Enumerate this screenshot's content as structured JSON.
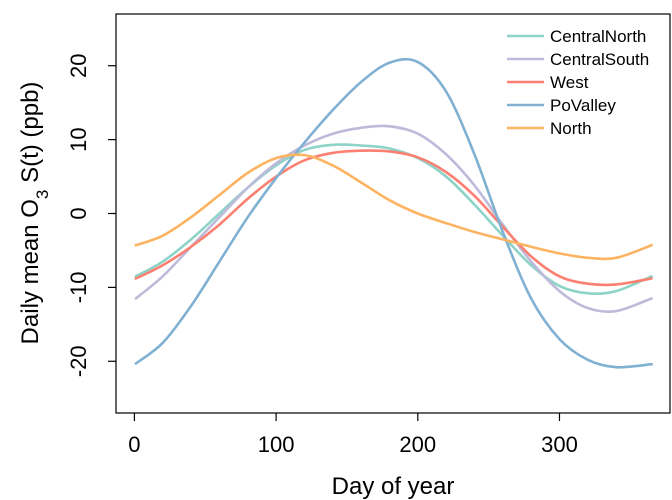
{
  "chart_data": {
    "type": "line",
    "title": "",
    "xlabel": "Day of year",
    "ylabel_main": "Daily mean O",
    "ylabel_sub": "3",
    "ylabel_tail": " S(t) (ppb)",
    "xlim": [
      -13,
      378
    ],
    "ylim": [
      -27,
      27
    ],
    "xticks": [
      0,
      100,
      200,
      300
    ],
    "xtick_labels": [
      "0",
      "100",
      "200",
      "300"
    ],
    "yticks": [
      -20,
      -10,
      0,
      10,
      20
    ],
    "ytick_labels": [
      "-20",
      "-10",
      "0",
      "10",
      "20"
    ],
    "legend_position": "top-right",
    "x": [
      1,
      20,
      40,
      60,
      80,
      100,
      120,
      140,
      160,
      180,
      200,
      220,
      240,
      260,
      280,
      300,
      320,
      340,
      365
    ],
    "series": [
      {
        "name": "CentralNorth",
        "color": "#8dd3c7",
        "values": [
          -8.5,
          -6.5,
          -3.5,
          0,
          3.5,
          6.5,
          8.6,
          9.3,
          9.2,
          8.8,
          7.5,
          5.0,
          1.2,
          -3.0,
          -7.0,
          -9.8,
          -10.8,
          -10.5,
          -8.5
        ]
      },
      {
        "name": "CentralSouth",
        "color": "#bebada",
        "values": [
          -11.5,
          -8.5,
          -4.5,
          -0.5,
          3.5,
          6.8,
          9.2,
          10.8,
          11.6,
          11.8,
          10.8,
          8.0,
          3.8,
          -1.5,
          -6.5,
          -10.5,
          -12.8,
          -13.2,
          -11.5
        ]
      },
      {
        "name": "West",
        "color": "#fb8072",
        "values": [
          -8.8,
          -7.0,
          -4.5,
          -1.5,
          2.0,
          5.0,
          7.2,
          8.2,
          8.5,
          8.4,
          7.6,
          5.6,
          2.4,
          -1.8,
          -5.8,
          -8.5,
          -9.5,
          -9.6,
          -8.8
        ]
      },
      {
        "name": "PoValley",
        "color": "#80b1d3",
        "values": [
          -20.3,
          -17.5,
          -12.5,
          -6.5,
          -0.5,
          4.8,
          9.6,
          14.0,
          17.8,
          20.4,
          20.5,
          16.5,
          8.0,
          -2.5,
          -11.5,
          -17.0,
          -19.8,
          -20.8,
          -20.4
        ]
      },
      {
        "name": "North",
        "color": "#fdb462",
        "values": [
          -4.3,
          -3.0,
          -0.5,
          2.5,
          5.5,
          7.5,
          7.9,
          6.5,
          4.2,
          1.8,
          0.0,
          -1.3,
          -2.5,
          -3.5,
          -4.5,
          -5.4,
          -6.0,
          -6.0,
          -4.3
        ]
      }
    ]
  }
}
